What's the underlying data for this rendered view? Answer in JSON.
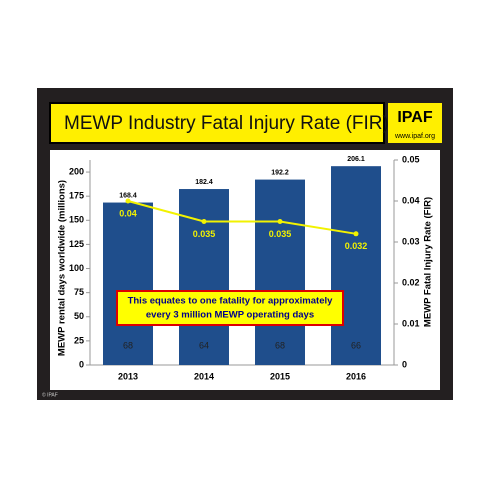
{
  "header": {
    "title": "MEWP Industry Fatal Injury Rate (FIR)",
    "logo": "IPAF",
    "url": "www.ipaf.org"
  },
  "chart_data": {
    "type": "bar",
    "categories": [
      "2013",
      "2014",
      "2015",
      "2016"
    ],
    "series": [
      {
        "values": [
          168.4,
          182.4,
          192.2,
          206.1
        ],
        "color": "#1f4e8c"
      },
      {
        "values": [
          0.04,
          0.035,
          0.035,
          0.032
        ],
        "color": "#f2f200",
        "axis": "y2",
        "type": "line"
      }
    ],
    "bar_inner_labels": [
      68,
      64,
      68,
      66
    ],
    "ylabel": "MEWP rental days worldwide (millions)",
    "y2label": "MEWP Fatal Injury Rate (FIR)",
    "ylim": [
      0,
      212.5
    ],
    "yticks": [
      0,
      25,
      50,
      75,
      100,
      125,
      150,
      175,
      200
    ],
    "y2lim": [
      0,
      0.05
    ],
    "y2ticks": [
      0,
      0.01,
      0.02,
      0.03,
      0.04,
      0.05
    ],
    "annotation": [
      "This equates to one fatality for approximately",
      "every 3 million MEWP operating days"
    ]
  },
  "footer": "© IPAF"
}
